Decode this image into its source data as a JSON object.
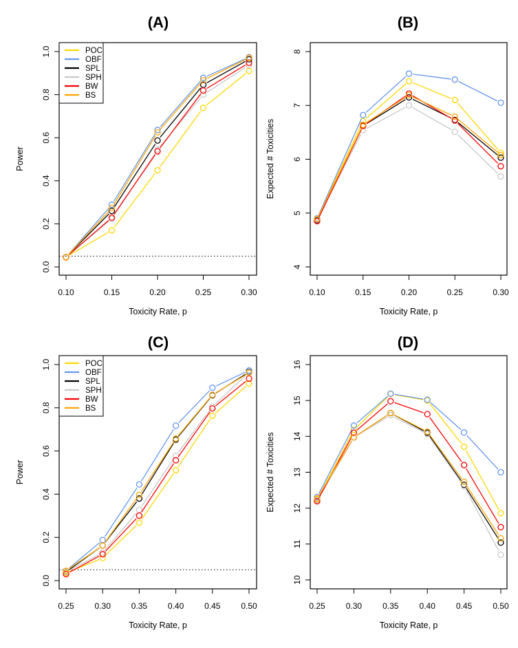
{
  "chart_data": [
    {
      "type": "line",
      "title": "(A)",
      "xlabel": "Toxicity Rate, p",
      "ylabel": "Power",
      "x": [
        0.1,
        0.15,
        0.2,
        0.25,
        0.3
      ],
      "xticks": [
        "0.10",
        "0.15",
        "0.20",
        "0.25",
        "0.30"
      ],
      "ylim": [
        0.0,
        1.0
      ],
      "yticks": [
        "0.0",
        "0.2",
        "0.4",
        "0.6",
        "0.8",
        "1.0"
      ],
      "reference_line": 0.05,
      "legend": "top-left",
      "series": [
        {
          "name": "POC",
          "color": "#FFD700",
          "values": [
            0.045,
            0.17,
            0.449,
            0.739,
            0.91
          ]
        },
        {
          "name": "OBF",
          "color": "#6495ED",
          "values": [
            0.045,
            0.289,
            0.636,
            0.878,
            0.974
          ]
        },
        {
          "name": "SPL",
          "color": "#000000",
          "values": [
            0.045,
            0.26,
            0.587,
            0.846,
            0.964
          ]
        },
        {
          "name": "SPH",
          "color": "#C8C8C8",
          "values": [
            0.045,
            0.223,
            0.545,
            0.8,
            0.937
          ]
        },
        {
          "name": "BW",
          "color": "#FF0000",
          "values": [
            0.045,
            0.229,
            0.537,
            0.819,
            0.948
          ]
        },
        {
          "name": "BS",
          "color": "#FFA500",
          "values": [
            0.045,
            0.274,
            0.625,
            0.867,
            0.971
          ]
        }
      ]
    },
    {
      "type": "line",
      "title": "(B)",
      "xlabel": "Toxicity Rate, p",
      "ylabel": "Expected # Toxicities",
      "x": [
        0.1,
        0.15,
        0.2,
        0.25,
        0.3
      ],
      "xticks": [
        "0.10",
        "0.15",
        "0.20",
        "0.25",
        "0.30"
      ],
      "ylim": [
        4,
        8
      ],
      "yticks": [
        "4",
        "5",
        "6",
        "7",
        "8"
      ],
      "series": [
        {
          "name": "POC",
          "color": "#FFD700",
          "values": [
            4.9,
            6.71,
            7.45,
            7.1,
            6.12
          ]
        },
        {
          "name": "OBF",
          "color": "#6495ED",
          "values": [
            4.9,
            6.82,
            7.59,
            7.48,
            7.05
          ]
        },
        {
          "name": "SPL",
          "color": "#000000",
          "values": [
            4.87,
            6.62,
            7.15,
            6.73,
            6.03
          ]
        },
        {
          "name": "SPH",
          "color": "#C8C8C8",
          "values": [
            4.88,
            6.54,
            7.0,
            6.51,
            5.68
          ]
        },
        {
          "name": "BW",
          "color": "#FF0000",
          "values": [
            4.85,
            6.62,
            7.22,
            6.72,
            5.87
          ]
        },
        {
          "name": "BS",
          "color": "#FFA500",
          "values": [
            4.89,
            6.64,
            7.19,
            6.79,
            6.08
          ]
        }
      ]
    },
    {
      "type": "line",
      "title": "(C)",
      "xlabel": "Toxicity Rate, p",
      "ylabel": "Power",
      "x": [
        0.25,
        0.3,
        0.35,
        0.4,
        0.45,
        0.5
      ],
      "xticks": [
        "0.25",
        "0.30",
        "0.35",
        "0.40",
        "0.45",
        "0.50"
      ],
      "ylim": [
        0.0,
        1.0
      ],
      "yticks": [
        "0.0",
        "0.2",
        "0.4",
        "0.6",
        "0.8",
        "1.0"
      ],
      "reference_line": 0.05,
      "legend": "top-left",
      "series": [
        {
          "name": "POC",
          "color": "#FFD700",
          "values": [
            0.035,
            0.104,
            0.268,
            0.511,
            0.763,
            0.912
          ]
        },
        {
          "name": "OBF",
          "color": "#6495ED",
          "values": [
            0.045,
            0.188,
            0.445,
            0.717,
            0.893,
            0.973
          ]
        },
        {
          "name": "SPL",
          "color": "#000000",
          "values": [
            0.04,
            0.162,
            0.38,
            0.653,
            0.858,
            0.966
          ]
        },
        {
          "name": "SPH",
          "color": "#C8C8C8",
          "values": [
            0.04,
            0.129,
            0.328,
            0.578,
            0.805,
            0.964
          ]
        },
        {
          "name": "BW",
          "color": "#FF0000",
          "values": [
            0.03,
            0.122,
            0.301,
            0.557,
            0.797,
            0.935
          ]
        },
        {
          "name": "BS",
          "color": "#FFA500",
          "values": [
            0.045,
            0.162,
            0.397,
            0.657,
            0.86,
            0.962
          ]
        }
      ]
    },
    {
      "type": "line",
      "title": "(D)",
      "xlabel": "Toxicity Rate, p",
      "ylabel": "Expected # Toxicities",
      "x": [
        0.25,
        0.3,
        0.35,
        0.4,
        0.45,
        0.5
      ],
      "xticks": [
        "0.25",
        "0.30",
        "0.35",
        "0.40",
        "0.45",
        "0.50"
      ],
      "ylim": [
        10,
        16
      ],
      "yticks": [
        "10",
        "11",
        "12",
        "13",
        "14",
        "15",
        "16"
      ],
      "series": [
        {
          "name": "POC",
          "color": "#FFD700",
          "values": [
            12.24,
            14.18,
            15.18,
            15.0,
            13.71,
            11.86
          ]
        },
        {
          "name": "OBF",
          "color": "#6495ED",
          "values": [
            12.31,
            14.3,
            15.19,
            15.02,
            14.11,
            13.0
          ]
        },
        {
          "name": "SPL",
          "color": "#000000",
          "values": [
            12.22,
            13.97,
            14.65,
            14.1,
            12.65,
            11.04
          ]
        },
        {
          "name": "SPH",
          "color": "#C8C8C8",
          "values": [
            12.22,
            13.97,
            14.59,
            14.06,
            12.61,
            10.7
          ]
        },
        {
          "name": "BW",
          "color": "#FF0000",
          "values": [
            12.19,
            14.1,
            14.98,
            14.62,
            13.2,
            11.47
          ]
        },
        {
          "name": "BS",
          "color": "#FFA500",
          "values": [
            12.27,
            13.97,
            14.65,
            14.13,
            12.73,
            11.16
          ]
        }
      ]
    }
  ]
}
